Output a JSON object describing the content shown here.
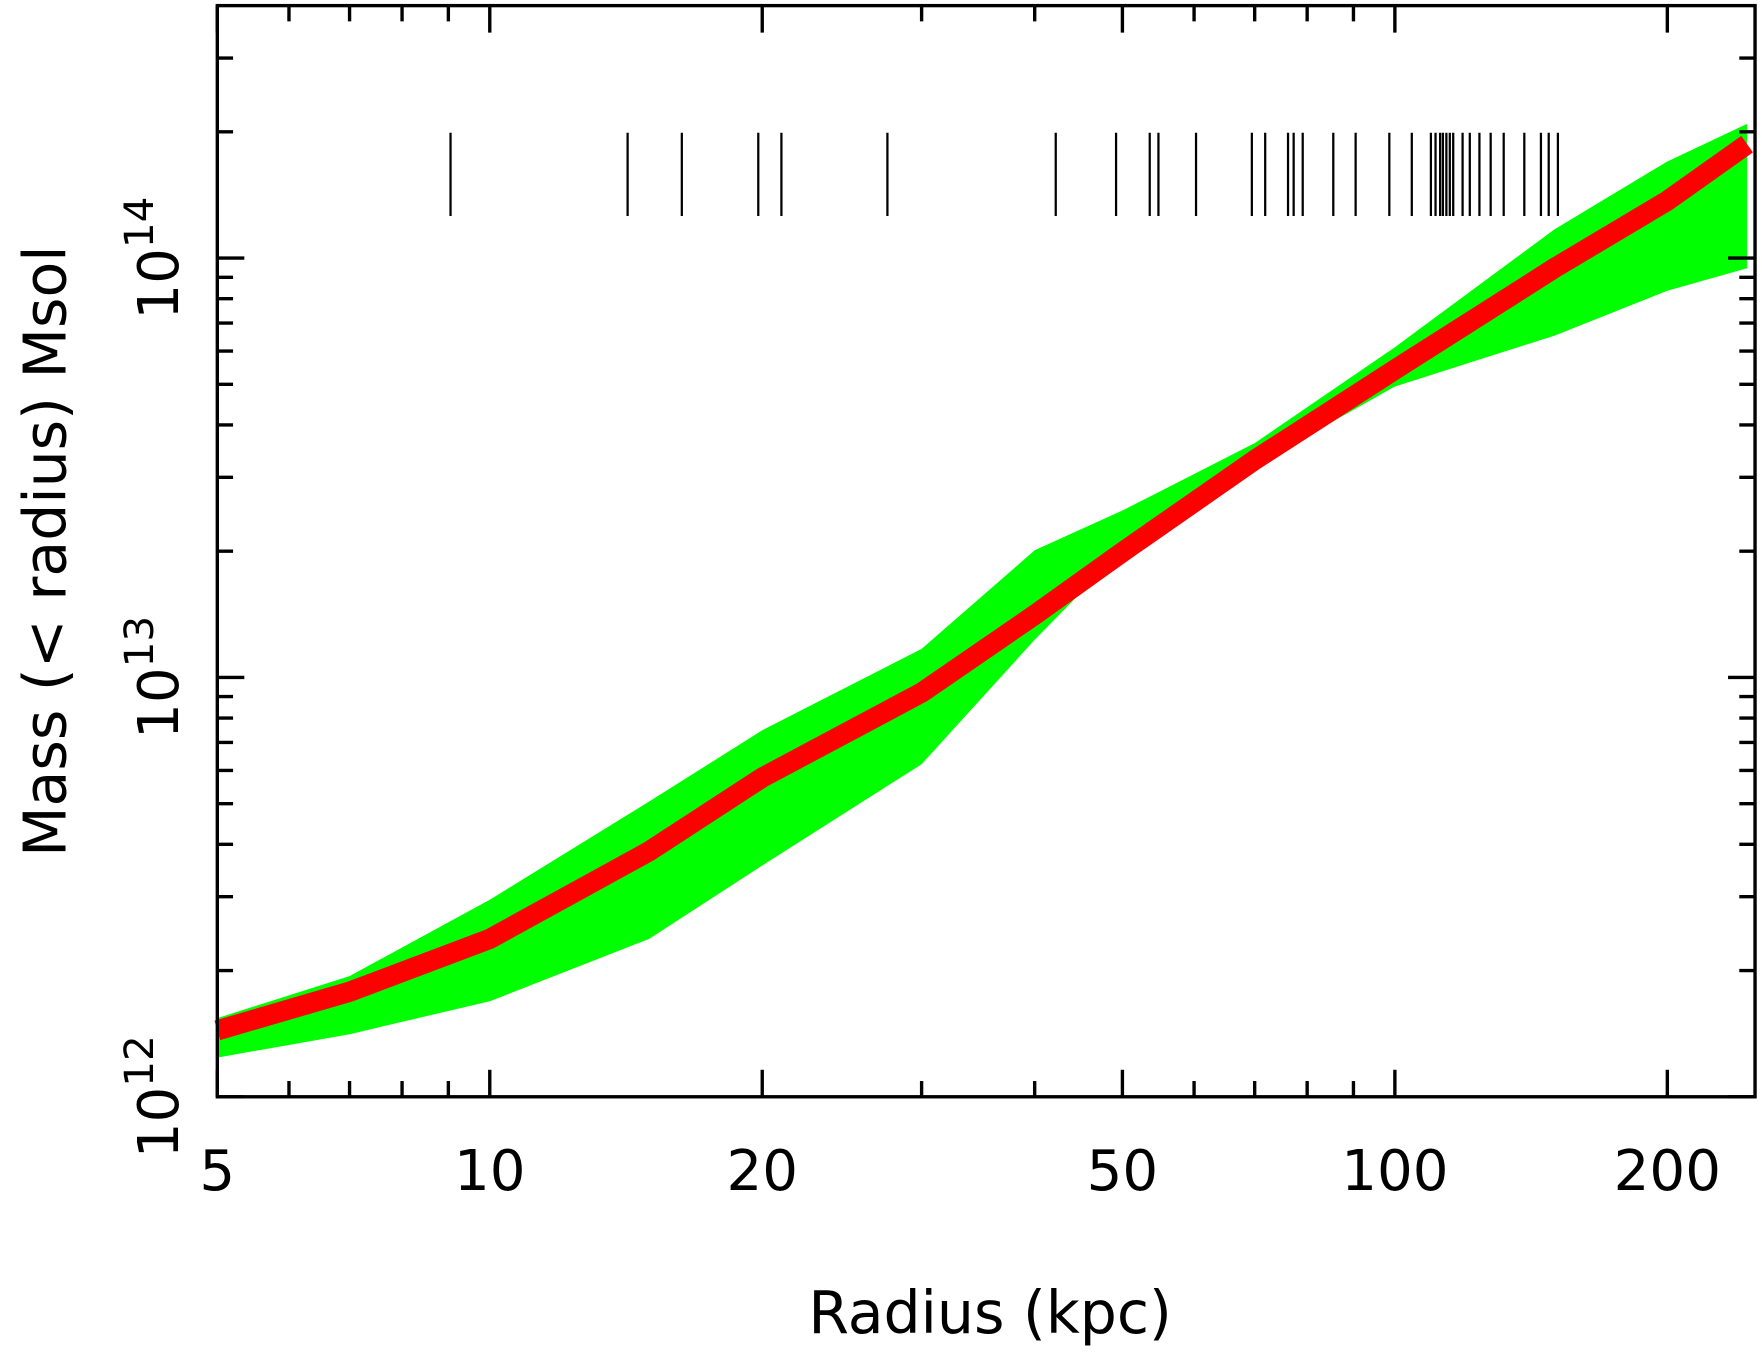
{
  "chart_data": {
    "type": "line",
    "xlabel": "Radius (kpc)",
    "ylabel": "Mass (< radius) Msol",
    "xscale": "log",
    "yscale": "log",
    "xlim": [
      5,
      250
    ],
    "ylim": [
      1000000000000,
      400000000000000
    ],
    "xticks": [
      5,
      10,
      20,
      50,
      100,
      200
    ],
    "xminorticks": [
      6,
      7,
      8,
      9,
      30,
      40,
      60,
      70,
      80,
      90
    ],
    "yticks": [
      {
        "value": 1000000000000,
        "label": "10",
        "exponent": "12"
      },
      {
        "value": 10000000000000,
        "label": "10",
        "exponent": "13"
      },
      {
        "value": 100000000000000,
        "label": "10",
        "exponent": "14"
      }
    ],
    "yminorticks": [
      2000000000000,
      3000000000000,
      4000000000000,
      5000000000000,
      6000000000000,
      7000000000000,
      8000000000000,
      9000000000000,
      20000000000000,
      30000000000000,
      40000000000000,
      50000000000000,
      60000000000000,
      70000000000000,
      80000000000000,
      90000000000000,
      200000000000000,
      300000000000000
    ],
    "x": [
      5,
      7,
      10,
      15,
      20,
      30,
      40,
      50,
      70,
      100,
      150,
      200,
      245
    ],
    "series": [
      {
        "color": "#ff0000",
        "values": [
          1440000000000,
          1780000000000,
          2380000000000,
          3850000000000,
          5770000000000,
          9200000000000,
          14100000000000,
          19900000000000,
          33000000000000,
          54200000000000,
          94600000000000,
          137000000000000,
          187000000000000
        ]
      }
    ],
    "band": {
      "color": "#00ff00",
      "upper": [
        1540000000000,
        1940000000000,
        2950000000000,
        5060000000000,
        7480000000000,
        11700000000000,
        20100000000000,
        25000000000000,
        36200000000000,
        61300000000000,
        117000000000000,
        170000000000000,
        209000000000000
      ],
      "lower": [
        1240000000000,
        1410000000000,
        1690000000000,
        2380000000000,
        3560000000000,
        6210000000000,
        12300000000000,
        20100000000000,
        32000000000000,
        49400000000000,
        65300000000000,
        83600000000000,
        94600000000000
      ]
    },
    "rug": {
      "color": "#000000",
      "values": [
        9.05,
        14.2,
        16.3,
        19.8,
        21.0,
        27.5,
        42.2,
        49.2,
        53.6,
        54.8,
        60.3,
        69.5,
        71.9,
        76.2,
        77.3,
        79.1,
        85.5,
        90.5,
        98.6,
        104.4,
        109.6,
        110.9,
        112.2,
        113,
        114,
        115,
        116,
        118.8,
        121,
        124,
        127.6,
        131.9,
        139,
        145,
        147.9,
        151.4
      ]
    }
  }
}
